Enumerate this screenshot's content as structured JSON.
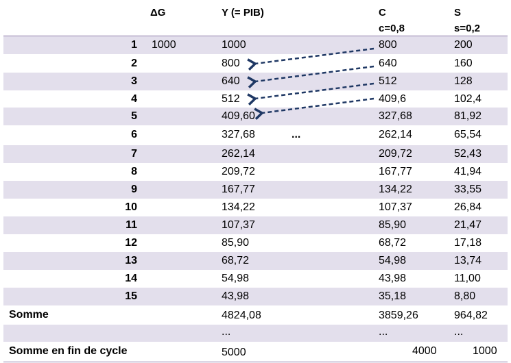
{
  "header": {
    "dg": "ΔG",
    "y": "Y (= PIB)",
    "c_top": "C",
    "c_bot": "c=0,8",
    "s_top": "S",
    "s_bot": "s=0,2"
  },
  "rows": [
    {
      "label": "1",
      "dg": "1000",
      "y": "1000",
      "c": "800",
      "s": "200"
    },
    {
      "label": "2",
      "dg": "",
      "y": "800",
      "c": "640",
      "s": "160"
    },
    {
      "label": "3",
      "dg": "",
      "y": "640",
      "c": "512",
      "s": "128"
    },
    {
      "label": "4",
      "dg": "",
      "y": "512",
      "c": "409,6",
      "s": "102,4"
    },
    {
      "label": "5",
      "dg": "",
      "y": "409,60",
      "c": "327,68",
      "s": "81,92"
    },
    {
      "label": "6",
      "dg": "",
      "y": "327,68",
      "c": "262,14",
      "s": "65,54",
      "mid": "..."
    },
    {
      "label": "7",
      "dg": "",
      "y": "262,14",
      "c": "209,72",
      "s": "52,43"
    },
    {
      "label": "8",
      "dg": "",
      "y": "209,72",
      "c": "167,77",
      "s": "41,94"
    },
    {
      "label": "9",
      "dg": "",
      "y": "167,77",
      "c": "134,22",
      "s": "33,55"
    },
    {
      "label": "10",
      "dg": "",
      "y": "134,22",
      "c": "107,37",
      "s": "26,84"
    },
    {
      "label": "11",
      "dg": "",
      "y": "107,37",
      "c": "85,90",
      "s": "21,47"
    },
    {
      "label": "12",
      "dg": "",
      "y": "85,90",
      "c": "68,72",
      "s": "17,18"
    },
    {
      "label": "13",
      "dg": "",
      "y": "68,72",
      "c": "54,98",
      "s": "13,74"
    },
    {
      "label": "14",
      "dg": "",
      "y": "54,98",
      "c": "43,98",
      "s": "11,00"
    },
    {
      "label": "15",
      "dg": "",
      "y": "43,98",
      "c": "35,18",
      "s": "8,80"
    }
  ],
  "somme": {
    "label": "Somme",
    "y": "4824,08",
    "c": "3859,26",
    "s": "964,82"
  },
  "dots": {
    "y": "...",
    "c": "...",
    "s": "..."
  },
  "fin": {
    "label": "Somme en fin de cycle",
    "y": "5000",
    "c": "4000",
    "s": "1000"
  },
  "colors": {
    "shade": "#e3dfec",
    "rule": "#8c7aa9",
    "arrow": "#1f3864"
  }
}
